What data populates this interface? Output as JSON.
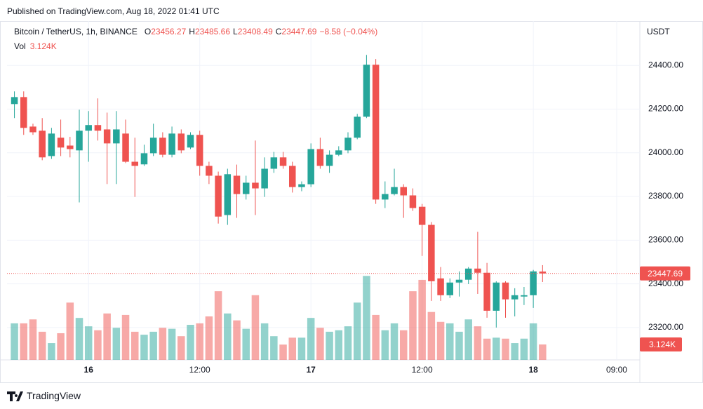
{
  "published": "Published on TradingView.com, Aug 18, 2022 01:41 UTC",
  "brand": "TradingView",
  "chart_data": {
    "type": "candlestick",
    "symbol": "Bitcoin / TetherUS, 1h, BINANCE",
    "legend_values": [
      {
        "key": "O",
        "value": "23456.27"
      },
      {
        "key": "H",
        "value": "23485.66"
      },
      {
        "key": "L",
        "value": "23408.49"
      },
      {
        "key": "C",
        "value": "23447.69"
      }
    ],
    "change": "−8.58 (−0.04%)",
    "volume_name": "Vol",
    "volume_last_label": "3.124K",
    "currency": "USDT",
    "up_color": "#26a69a",
    "down_color": "#ef5350",
    "x": [
      0,
      1,
      2,
      3,
      4,
      5,
      6,
      7,
      8,
      9,
      10,
      11,
      12,
      13,
      14,
      15,
      16,
      17,
      18,
      19,
      20,
      21,
      22,
      23,
      24,
      25,
      26,
      27,
      28,
      29,
      30,
      31,
      32,
      33,
      34,
      35,
      36,
      37,
      38,
      39,
      40,
      41,
      42,
      43,
      44,
      45,
      46,
      47,
      48,
      49,
      50,
      51,
      52,
      53,
      54,
      55,
      56,
      57
    ],
    "open": [
      24223,
      24255,
      24120,
      24101,
      23985,
      24069,
      24033,
      24011,
      24101,
      24127,
      24107,
      24043,
      24088,
      23959,
      23947,
      23998,
      24069,
      23991,
      24088,
      24024,
      24082,
      23940,
      23895,
      23715,
      23895,
      23811,
      23863,
      23837,
      23927,
      23979,
      23940,
      23843,
      23856,
      24017,
      23940,
      23991,
      24011,
      24069,
      24165,
      24403,
      23786,
      23811,
      23843,
      23805,
      23753,
      23670,
      23425,
      23348,
      23406,
      23419,
      23470,
      23451,
      23277,
      23406,
      23329,
      23342,
      23348,
      23456.27
    ],
    "high": [
      24281,
      24281,
      24133,
      24159,
      24114,
      24152,
      24073,
      24197,
      24191,
      24249,
      24184,
      24191,
      24152,
      24069,
      24037,
      24133,
      24094,
      24120,
      24107,
      24094,
      24101,
      23959,
      23914,
      23927,
      23946,
      23895,
      24056,
      23979,
      24004,
      24004,
      23959,
      23869,
      24043,
      24069,
      24011,
      24030,
      24094,
      24178,
      24448,
      24429,
      23869,
      23927,
      23856,
      23837,
      23766,
      23683,
      23477,
      23425,
      23457,
      23477,
      23638,
      23496,
      23412,
      23412,
      23380,
      23386,
      23464,
      23485.66
    ],
    "low": [
      24159,
      24082,
      24082,
      23966,
      23972,
      23985,
      23979,
      23773,
      23959,
      24056,
      23857,
      23857,
      23953,
      23798,
      23940,
      23985,
      23979,
      23979,
      23998,
      24017,
      23895,
      23857,
      23676,
      23670,
      23702,
      23786,
      23715,
      23798,
      23908,
      23927,
      23818,
      23824,
      23843,
      23927,
      23908,
      23985,
      23998,
      24062,
      24159,
      23766,
      23747,
      23805,
      23702,
      23734,
      23528,
      23322,
      23322,
      23335,
      23342,
      23399,
      23354,
      23245,
      23200,
      23245,
      23251,
      23303,
      23290,
      23408.49
    ],
    "close": [
      24255,
      24114,
      24094,
      23979,
      24088,
      24024,
      24017,
      24101,
      24127,
      24101,
      24043,
      24107,
      23959,
      23940,
      23998,
      24069,
      23991,
      24088,
      24011,
      24082,
      23940,
      23895,
      23708,
      23902,
      23811,
      23863,
      23837,
      23927,
      23979,
      23940,
      23843,
      23856,
      24017,
      23940,
      23991,
      24011,
      24069,
      24165,
      24403,
      23786,
      23811,
      23843,
      23805,
      23747,
      23670,
      23412,
      23348,
      23406,
      23419,
      23470,
      23451,
      23277,
      23406,
      23329,
      23348,
      23348,
      23457,
      23447.69
    ],
    "volume": [
      7.4,
      7.4,
      8.2,
      5.7,
      3.4,
      5.4,
      11.6,
      8.5,
      6.8,
      6.0,
      9.4,
      6.5,
      9.1,
      5.7,
      5.1,
      5.7,
      6.5,
      6.3,
      4.8,
      7.1,
      7.4,
      8.8,
      13.9,
      9.4,
      8.0,
      6.3,
      13.1,
      7.4,
      4.8,
      3.1,
      4.5,
      4.5,
      8.5,
      6.5,
      5.7,
      6.0,
      6.8,
      11.6,
      17.0,
      9.1,
      6.0,
      7.4,
      6.0,
      13.9,
      16.2,
      9.7,
      7.7,
      7.4,
      5.7,
      8.2,
      6.8,
      4.3,
      4.5,
      4.3,
      3.4,
      4.3,
      7.4,
      3.124
    ],
    "xlim": [
      -0.8,
      67.5
    ],
    "xticks": [
      {
        "value": 8,
        "label": "16"
      },
      {
        "value": 20,
        "label": "12:00"
      },
      {
        "value": 32,
        "label": "17"
      },
      {
        "value": 44,
        "label": "12:00"
      },
      {
        "value": 56,
        "label": "18"
      },
      {
        "value": 65,
        "label": "09:00"
      }
    ],
    "ylim": [
      23052,
      24603
    ],
    "yticks": [
      {
        "value": 23200,
        "label": "23200.00"
      },
      {
        "value": 23400,
        "label": "23400.00"
      },
      {
        "value": 23600,
        "label": "23600.00"
      },
      {
        "value": 23800,
        "label": "23800.00"
      },
      {
        "value": 24000,
        "label": "24000.00"
      },
      {
        "value": 24200,
        "label": "24200.00"
      },
      {
        "value": 24400,
        "label": "24400.00"
      }
    ],
    "volume_lim": [
      0,
      68.6
    ],
    "grid": true
  }
}
